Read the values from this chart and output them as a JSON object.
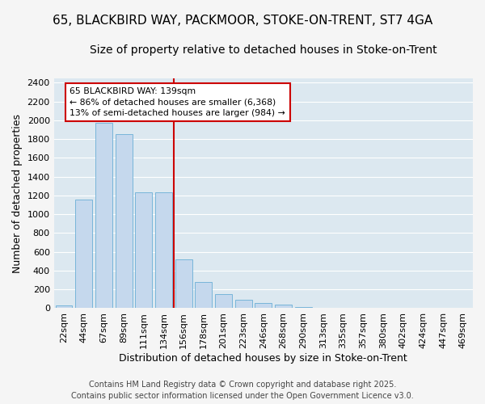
{
  "title1": "65, BLACKBIRD WAY, PACKMOOR, STOKE-ON-TRENT, ST7 4GA",
  "title2": "Size of property relative to detached houses in Stoke-on-Trent",
  "xlabel": "Distribution of detached houses by size in Stoke-on-Trent",
  "ylabel": "Number of detached properties",
  "categories": [
    "22sqm",
    "44sqm",
    "67sqm",
    "89sqm",
    "111sqm",
    "134sqm",
    "156sqm",
    "178sqm",
    "201sqm",
    "223sqm",
    "246sqm",
    "268sqm",
    "290sqm",
    "313sqm",
    "335sqm",
    "357sqm",
    "380sqm",
    "402sqm",
    "424sqm",
    "447sqm",
    "469sqm"
  ],
  "values": [
    30,
    1160,
    1970,
    1850,
    1230,
    1230,
    520,
    275,
    150,
    90,
    55,
    40,
    15,
    5,
    2,
    2,
    2,
    2,
    2,
    2,
    2
  ],
  "bar_color": "#c5d8ed",
  "bar_edge_color": "#6aaed6",
  "red_line_x": 5.5,
  "highlight_color": "#cc0000",
  "annotation_text": "65 BLACKBIRD WAY: 139sqm\n← 86% of detached houses are smaller (6,368)\n13% of semi-detached houses are larger (984) →",
  "annotation_box_color": "#ffffff",
  "annotation_box_edge": "#cc0000",
  "ylim": [
    0,
    2450
  ],
  "yticks": [
    0,
    200,
    400,
    600,
    800,
    1000,
    1200,
    1400,
    1600,
    1800,
    2000,
    2200,
    2400
  ],
  "bg_color": "#dce8f0",
  "grid_color": "#ffffff",
  "fig_bg": "#f5f5f5",
  "footer1": "Contains HM Land Registry data © Crown copyright and database right 2025.",
  "footer2": "Contains public sector information licensed under the Open Government Licence v3.0.",
  "title1_fontsize": 11,
  "title2_fontsize": 10,
  "tick_fontsize": 8,
  "label_fontsize": 9,
  "footer_fontsize": 7
}
